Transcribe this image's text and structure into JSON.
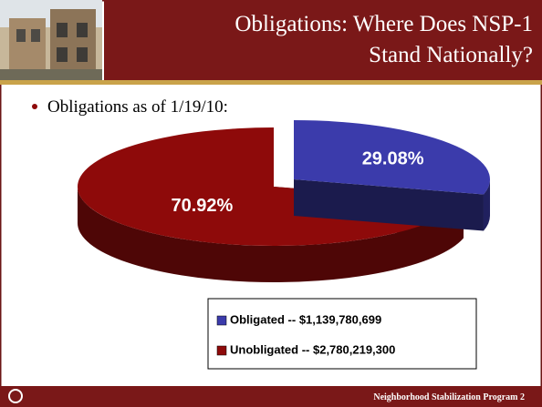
{
  "slide": {
    "title": [
      "Obligations: Where Does NSP-1",
      "Stand Nationally?"
    ],
    "bullet": "Obligations as of 1/19/10:",
    "footer": "Neighborhood Stabilization Program 2"
  },
  "chart_data": {
    "type": "pie",
    "categories": [
      "Obligated -- $1,139,780,699",
      "Unobligated -- $2,780,219,300"
    ],
    "values": [
      29.08,
      70.92
    ],
    "value_labels": [
      "29.08%",
      "70.92%"
    ],
    "colors": [
      "#3b3bab",
      "#8e0a0a"
    ],
    "legend": "bottom-right"
  }
}
